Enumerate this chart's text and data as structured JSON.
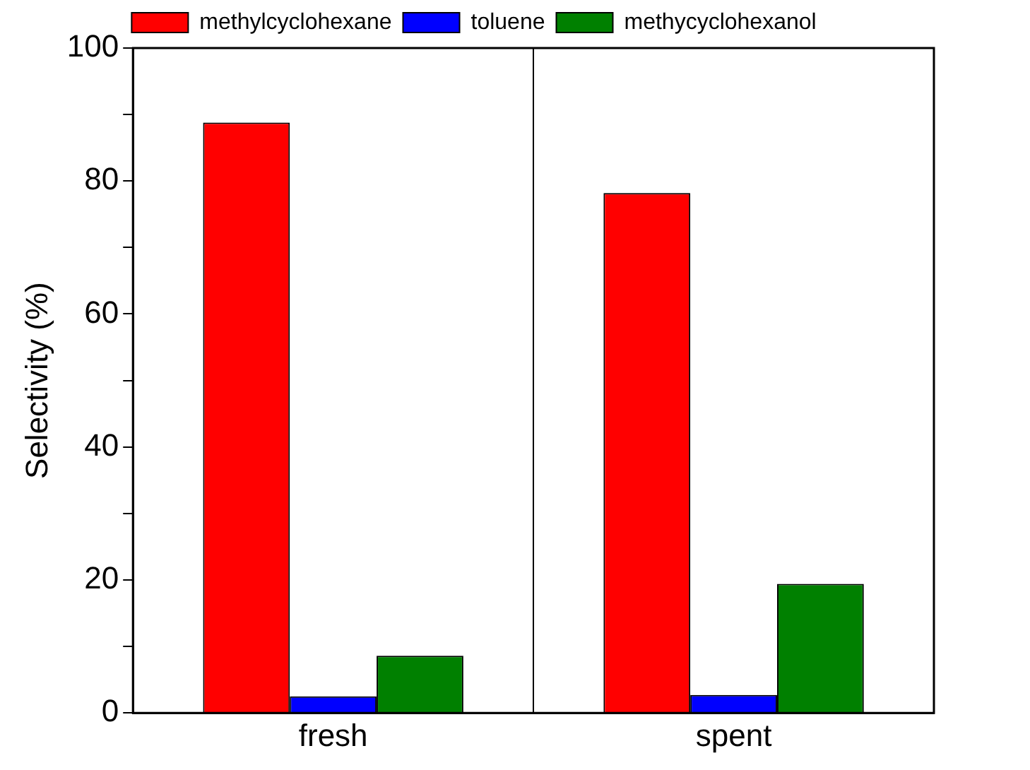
{
  "chart_data": {
    "type": "bar",
    "ylabel": "Selectivity (%)",
    "categories": [
      "fresh",
      "spent"
    ],
    "series": [
      {
        "name": "methylcyclohexane",
        "color": "#ff0000",
        "values": [
          88.8,
          78.2
        ]
      },
      {
        "name": "toluene",
        "color": "#0000ff",
        "values": [
          2.5,
          2.7
        ]
      },
      {
        "name": "methycyclohexanol",
        "color": "#008000",
        "values": [
          8.6,
          19.4
        ]
      }
    ],
    "ylim": [
      0,
      100
    ],
    "yticks": [
      0,
      {
        "value": 10,
        "label": null
      },
      20,
      {
        "value": 30,
        "label": null
      },
      40,
      {
        "value": 50,
        "label": null
      },
      60,
      {
        "value": 70,
        "label": null
      },
      80,
      {
        "value": 90,
        "label": null
      },
      100
    ],
    "grid": "x",
    "legend": "top"
  }
}
